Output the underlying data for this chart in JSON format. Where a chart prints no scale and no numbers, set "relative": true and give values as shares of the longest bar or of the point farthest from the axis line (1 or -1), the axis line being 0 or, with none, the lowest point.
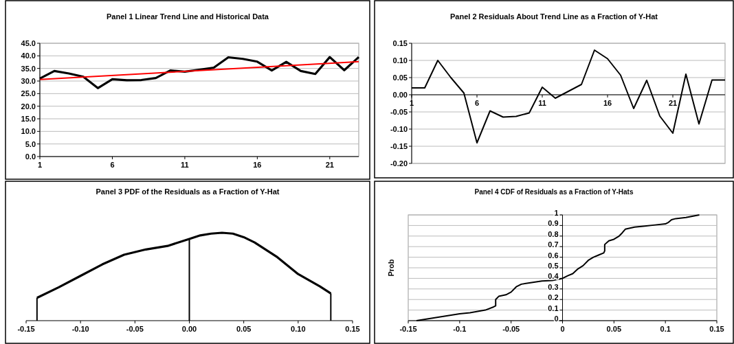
{
  "chart_data": [
    {
      "type": "line",
      "title": "Panel 1 Linear Trend Line and Historical Data",
      "x": [
        1,
        2,
        3,
        4,
        5,
        6,
        7,
        8,
        9,
        10,
        11,
        12,
        13,
        14,
        15,
        16,
        17,
        18,
        19,
        20,
        21,
        22,
        23
      ],
      "xlim": [
        1,
        23
      ],
      "xticks": [
        1,
        6,
        11,
        16,
        21
      ],
      "ylim": [
        0,
        45
      ],
      "yticks": [
        {
          "value": 0,
          "label": "0.0"
        },
        {
          "value": 5,
          "label": "5.0"
        },
        {
          "value": 10,
          "label": "10.0"
        },
        {
          "value": 15,
          "label": "15.0"
        },
        {
          "value": 20,
          "label": "20.0"
        },
        {
          "value": 25,
          "label": "25.0"
        },
        {
          "value": 30,
          "label": "30.0"
        },
        {
          "value": 35,
          "label": "35.0"
        },
        {
          "value": 40,
          "label": "40.0"
        },
        {
          "value": 45,
          "label": "45.0"
        }
      ],
      "grid": "y",
      "series": [
        {
          "color": "#000000",
          "values": [
            31.0,
            34.0,
            33.0,
            31.7,
            27.2,
            30.7,
            30.3,
            30.4,
            31.2,
            34.2,
            33.7,
            34.5,
            35.3,
            39.4,
            38.8,
            37.7,
            34.2,
            37.6,
            34.0,
            32.8,
            39.5,
            34.3,
            39.5
          ]
        },
        {
          "type": "line",
          "color": "#ff0000",
          "x": [
            1,
            23
          ],
          "values": [
            30.6,
            37.7
          ]
        }
      ]
    },
    {
      "type": "line",
      "title": "Panel 2 Residuals About Trend Line as a Fraction of Y-Hat",
      "x": [
        1,
        2,
        3,
        4,
        5,
        6,
        7,
        8,
        9,
        10,
        11,
        12,
        13,
        14,
        15,
        16,
        17,
        18,
        19,
        20,
        21,
        22,
        23,
        24,
        25
      ],
      "xlim": [
        1,
        25
      ],
      "xticks": [
        1,
        6,
        11,
        16,
        21
      ],
      "ylim": [
        -0.2,
        0.15
      ],
      "yticks": [
        {
          "value": -0.2,
          "label": "-0.20"
        },
        {
          "value": -0.15,
          "label": "-0.15"
        },
        {
          "value": -0.1,
          "label": "-0.10"
        },
        {
          "value": -0.05,
          "label": "-0.05"
        },
        {
          "value": 0,
          "label": "0.00"
        },
        {
          "value": 0.05,
          "label": "0.05"
        },
        {
          "value": 0.1,
          "label": "0.10"
        },
        {
          "value": 0.15,
          "label": "0.15"
        }
      ],
      "grid": "y",
      "series": [
        {
          "color": "#000000",
          "values": [
            0.02,
            0.02,
            0.1,
            0.05,
            0.005,
            -0.14,
            -0.047,
            -0.065,
            -0.063,
            -0.053,
            0.022,
            -0.01,
            0.01,
            0.03,
            0.13,
            0.105,
            0.057,
            -0.04,
            0.042,
            -0.062,
            -0.112,
            0.06,
            -0.085,
            0.043,
            0.043
          ]
        }
      ]
    },
    {
      "type": "line",
      "title": "Panel 3 PDF of the Residuals as a Fraction of Y-Hat",
      "relative": true,
      "xlim": [
        -0.15,
        0.15
      ],
      "xticks": [
        {
          "value": -0.15,
          "label": "-0.15"
        },
        {
          "value": -0.1,
          "label": "-0.10"
        },
        {
          "value": -0.05,
          "label": "-0.05"
        },
        {
          "value": 0,
          "label": "0.00"
        },
        {
          "value": 0.05,
          "label": "0.05"
        },
        {
          "value": 0.1,
          "label": "0.10"
        },
        {
          "value": 0.15,
          "label": "0.15"
        }
      ],
      "tick_labels": "x",
      "grid": false,
      "series": [
        {
          "color": "#000000",
          "x": [
            -0.14,
            -0.12,
            -0.1,
            -0.08,
            -0.06,
            -0.04,
            -0.02,
            0,
            0.01,
            0.02,
            0.03,
            0.04,
            0.05,
            0.06,
            0.08,
            0.1,
            0.12,
            0.13
          ],
          "values": [
            0.26,
            0.38,
            0.51,
            0.64,
            0.75,
            0.81,
            0.85,
            0.93,
            0.97,
            0.99,
            1,
            0.99,
            0.95,
            0.89,
            0.73,
            0.53,
            0.39,
            0.31
          ]
        },
        {
          "type": "bar",
          "color": "#000000",
          "x": [
            -0.14,
            0,
            0.13
          ],
          "values": [
            0.26,
            0.93,
            0.31
          ]
        }
      ]
    },
    {
      "type": "line",
      "title": "Panel 4 CDF of Residuals as a Fraction of Y-Hats",
      "ylabel": "Prob",
      "xlim": [
        -0.15,
        0.15
      ],
      "xticks": [
        -0.15,
        -0.1,
        -0.05,
        0,
        0.05,
        0.1,
        0.15
      ],
      "ylim": [
        0,
        1
      ],
      "yticks": [
        0,
        0.1,
        0.2,
        0.3,
        0.4,
        0.5,
        0.6,
        0.7,
        0.8,
        0.9,
        1
      ],
      "grid": "y",
      "series": [
        {
          "color": "#000000",
          "x": [
            -0.142,
            -0.1,
            -0.09,
            -0.075,
            -0.067,
            -0.065,
            -0.065,
            -0.062,
            -0.055,
            -0.05,
            -0.045,
            -0.04,
            -0.03,
            -0.02,
            -0.01,
            0,
            0.005,
            0.01,
            0.015,
            0.02,
            0.025,
            0.03,
            0.035,
            0.04,
            0.041,
            0.041,
            0.045,
            0.05,
            0.055,
            0.058,
            0.061,
            0.07,
            0.08,
            0.09,
            0.1,
            0.103,
            0.106,
            0.11,
            0.12,
            0.133
          ],
          "values": [
            0,
            0.065,
            0.075,
            0.1,
            0.13,
            0.14,
            0.2,
            0.23,
            0.245,
            0.27,
            0.32,
            0.345,
            0.36,
            0.375,
            0.38,
            0.4,
            0.425,
            0.445,
            0.49,
            0.52,
            0.57,
            0.6,
            0.62,
            0.64,
            0.66,
            0.72,
            0.755,
            0.77,
            0.8,
            0.83,
            0.865,
            0.885,
            0.895,
            0.905,
            0.915,
            0.93,
            0.955,
            0.965,
            0.975,
            1
          ]
        }
      ]
    }
  ]
}
